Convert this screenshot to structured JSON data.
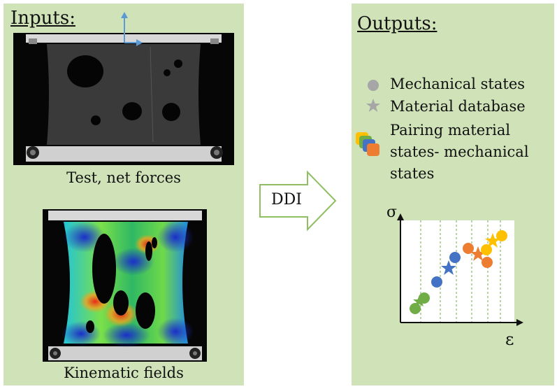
{
  "inputs": {
    "title": "Inputs:",
    "caption_test": "Test, net forces",
    "caption_fields": "Kinematic fields"
  },
  "arrow": {
    "label": "DDI"
  },
  "outputs": {
    "title": "Outputs:",
    "legend": [
      {
        "label": "Mechanical states",
        "icon": "circle-icon",
        "color": "#a6a6a6"
      },
      {
        "label": "Material database",
        "icon": "star-icon",
        "color": "#a6a6a6"
      },
      {
        "label": "Pairing material states- mechanical states",
        "icon": "stacked-squares-icon"
      }
    ],
    "plot": {
      "y_label": "σ",
      "x_label": "ε"
    }
  },
  "colors": {
    "panel": "#cfe2b8",
    "green": "#70ad47",
    "blue": "#4472c4",
    "orange": "#ed7d31",
    "yellow": "#ffc000",
    "arrow_blue": "#5b9bd5"
  }
}
